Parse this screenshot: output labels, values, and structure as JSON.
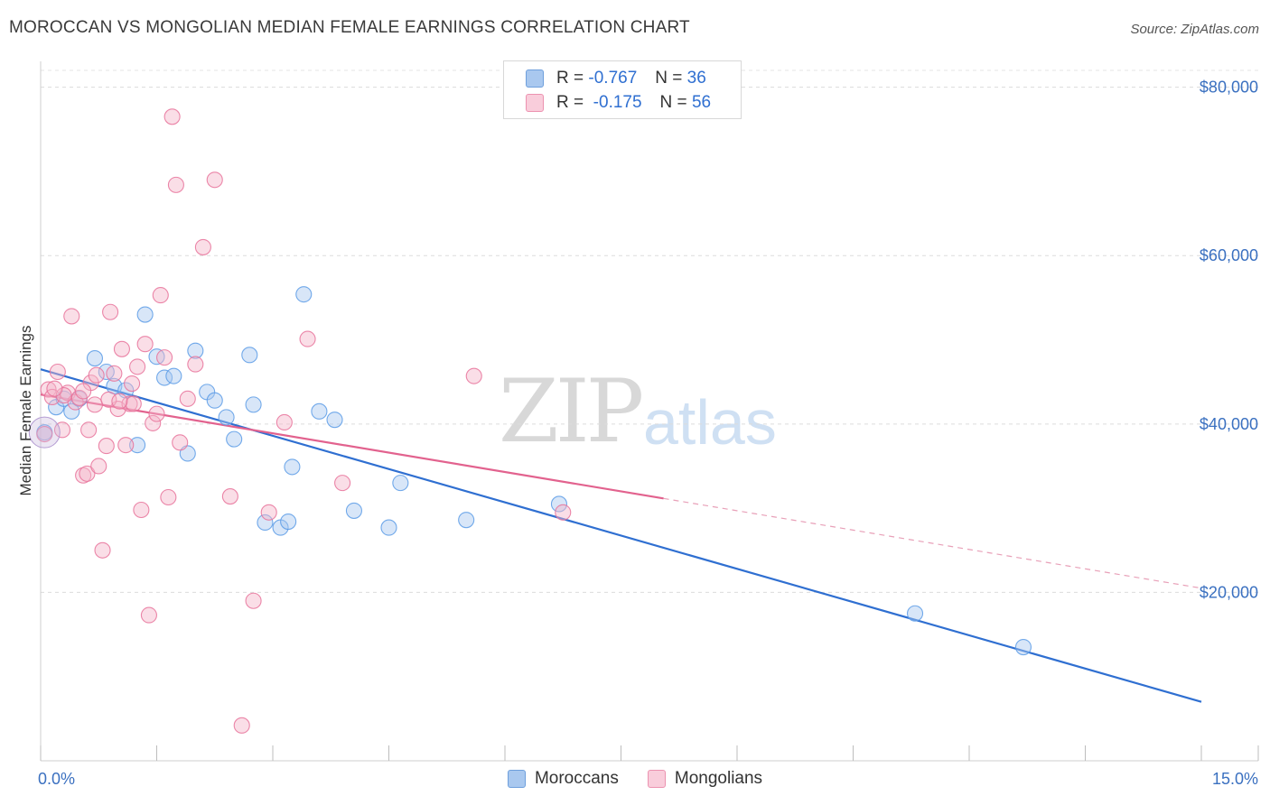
{
  "header": {
    "title": "MOROCCAN VS MONGOLIAN MEDIAN FEMALE EARNINGS CORRELATION CHART",
    "source": "Source: ZipAtlas.com"
  },
  "watermark": {
    "zip": "ZIP",
    "atlas": "atlas"
  },
  "legend_top": [
    {
      "r_label": "R =",
      "r_value": "-0.767",
      "n_label": "N =",
      "n_value": "36",
      "color": "#a9c8ef"
    },
    {
      "r_label": "R =",
      "r_value": "-0.175",
      "n_label": "N =",
      "n_value": "56",
      "color": "#f5b5c9"
    }
  ],
  "legend_bottom": [
    {
      "label": "Moroccans",
      "color": "#a9c8ef"
    },
    {
      "label": "Mongolians",
      "color": "#f5b5c9"
    }
  ],
  "chart_data": {
    "type": "scatter",
    "title": "MOROCCAN VS MONGOLIAN MEDIAN FEMALE EARNINGS CORRELATION CHART",
    "xlabel": "",
    "ylabel": "Median Female Earnings",
    "xlim": [
      0,
      15
    ],
    "ylim": [
      0,
      82000
    ],
    "x_tick_labels": [
      "0.0%",
      "15.0%"
    ],
    "y_ticks": [
      20000,
      40000,
      60000,
      80000
    ],
    "y_tick_labels": [
      "$20,000",
      "$40,000",
      "$60,000",
      "$80,000"
    ],
    "grid": true,
    "legend_position": "top-center and bottom",
    "series": [
      {
        "name": "Moroccans",
        "color": "#5b9be6",
        "fill": "#a9c8ef",
        "r": -0.767,
        "n": 36,
        "trend": {
          "x": [
            0,
            15
          ],
          "y": [
            46500,
            7000
          ],
          "dashed_from": null
        },
        "points": [
          [
            0.05,
            39000
          ],
          [
            0.2,
            42000
          ],
          [
            0.3,
            43000
          ],
          [
            0.4,
            41500
          ],
          [
            0.5,
            43000
          ],
          [
            0.7,
            47800
          ],
          [
            0.85,
            46200
          ],
          [
            0.95,
            44500
          ],
          [
            1.1,
            44000
          ],
          [
            1.25,
            37500
          ],
          [
            1.35,
            53000
          ],
          [
            1.5,
            48000
          ],
          [
            1.6,
            45500
          ],
          [
            1.72,
            45700
          ],
          [
            1.9,
            36500
          ],
          [
            2.0,
            48700
          ],
          [
            2.15,
            43800
          ],
          [
            2.25,
            42800
          ],
          [
            2.4,
            40800
          ],
          [
            2.5,
            38200
          ],
          [
            2.7,
            48200
          ],
          [
            2.75,
            42300
          ],
          [
            2.9,
            28300
          ],
          [
            3.1,
            27700
          ],
          [
            3.2,
            28400
          ],
          [
            3.25,
            34900
          ],
          [
            3.4,
            55400
          ],
          [
            3.6,
            41500
          ],
          [
            3.8,
            40500
          ],
          [
            4.05,
            29700
          ],
          [
            4.5,
            27700
          ],
          [
            4.65,
            33000
          ],
          [
            5.5,
            28600
          ],
          [
            6.7,
            30500
          ],
          [
            11.3,
            17500
          ],
          [
            12.7,
            13500
          ]
        ]
      },
      {
        "name": "Mongolians",
        "color": "#e7729a",
        "fill": "#f5b5c9",
        "r": -0.175,
        "n": 56,
        "trend": {
          "x": [
            0,
            15
          ],
          "y": [
            43500,
            20500
          ],
          "solid_until_x": 8.05
        },
        "points": [
          [
            0.05,
            38800
          ],
          [
            0.1,
            44100
          ],
          [
            0.15,
            43200
          ],
          [
            0.22,
            46200
          ],
          [
            0.28,
            39300
          ],
          [
            0.35,
            43700
          ],
          [
            0.4,
            52800
          ],
          [
            0.45,
            42600
          ],
          [
            0.5,
            43100
          ],
          [
            0.55,
            33900
          ],
          [
            0.6,
            34100
          ],
          [
            0.62,
            39300
          ],
          [
            0.65,
            44900
          ],
          [
            0.7,
            42300
          ],
          [
            0.75,
            35000
          ],
          [
            0.8,
            25000
          ],
          [
            0.85,
            37400
          ],
          [
            0.9,
            53300
          ],
          [
            0.95,
            46000
          ],
          [
            1.0,
            41800
          ],
          [
            1.05,
            48900
          ],
          [
            1.1,
            37500
          ],
          [
            1.15,
            42400
          ],
          [
            1.2,
            42400
          ],
          [
            1.25,
            46800
          ],
          [
            1.3,
            29800
          ],
          [
            1.35,
            49500
          ],
          [
            1.4,
            17300
          ],
          [
            1.45,
            40100
          ],
          [
            1.5,
            41200
          ],
          [
            1.55,
            55300
          ],
          [
            1.6,
            47900
          ],
          [
            1.65,
            31300
          ],
          [
            1.7,
            76500
          ],
          [
            1.75,
            68400
          ],
          [
            1.8,
            37800
          ],
          [
            1.9,
            43000
          ],
          [
            2.0,
            47100
          ],
          [
            2.1,
            61000
          ],
          [
            2.25,
            69000
          ],
          [
            2.45,
            31400
          ],
          [
            2.6,
            4200
          ],
          [
            2.75,
            19000
          ],
          [
            2.95,
            29500
          ],
          [
            3.15,
            40200
          ],
          [
            3.45,
            50100
          ],
          [
            3.9,
            33000
          ],
          [
            5.6,
            45700
          ],
          [
            6.75,
            29500
          ],
          [
            0.3,
            43400
          ],
          [
            0.55,
            43900
          ],
          [
            0.72,
            45800
          ],
          [
            0.88,
            42900
          ],
          [
            1.02,
            42700
          ],
          [
            1.18,
            44800
          ],
          [
            0.18,
            44200
          ]
        ]
      }
    ]
  }
}
